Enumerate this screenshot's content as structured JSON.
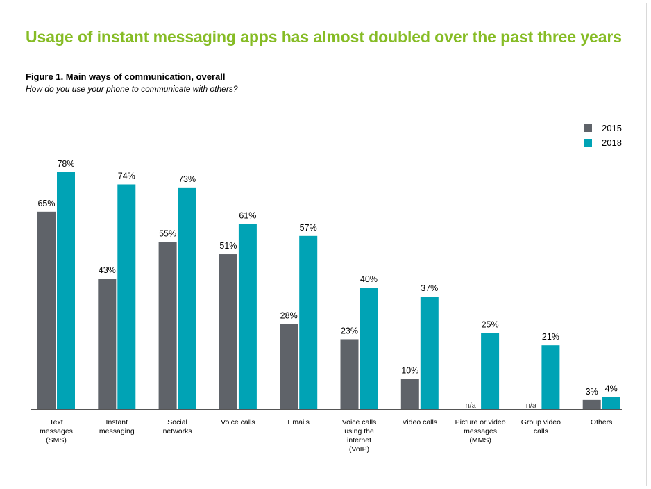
{
  "headline": "Usage of instant messaging apps has almost doubled over the past three years",
  "figure_title": "Figure 1. Main ways of communication, overall",
  "figure_subtitle": "How do you use your phone to communicate with others?",
  "colors": {
    "series_2015": "#5f6369",
    "series_2018": "#00a3b5",
    "headline": "#86bc25",
    "axis": "#555555"
  },
  "legend": [
    {
      "label": "2015",
      "color": "#5f6369"
    },
    {
      "label": "2018",
      "color": "#00a3b5"
    }
  ],
  "chart_data": {
    "type": "bar",
    "title": "Figure 1. Main ways of communication, overall",
    "subtitle": "How do you use your phone to communicate with others?",
    "xlabel": "",
    "ylabel": "",
    "ylim": [
      0,
      78
    ],
    "grid": false,
    "legend_position": "top-right",
    "categories": [
      "Text messages (SMS)",
      "Instant messaging",
      "Social networks",
      "Voice calls",
      "Emails",
      "Voice calls using the internet (VoIP)",
      "Video calls",
      "Picture or video messages (MMS)",
      "Group video calls",
      "Others"
    ],
    "category_lines": [
      [
        "Text",
        "messages",
        "(SMS)"
      ],
      [
        "Instant",
        "messaging"
      ],
      [
        "Social",
        "networks"
      ],
      [
        "Voice calls"
      ],
      [
        "Emails"
      ],
      [
        "Voice calls",
        "using the",
        "internet",
        "(VoIP)"
      ],
      [
        "Video calls"
      ],
      [
        "Picture or video",
        "messages",
        "(MMS)"
      ],
      [
        "Group video",
        "calls"
      ],
      [
        "Others"
      ]
    ],
    "series": [
      {
        "name": "2015",
        "values": [
          65,
          43,
          55,
          51,
          28,
          23,
          10,
          null,
          null,
          3
        ],
        "labels": [
          "65%",
          "43%",
          "55%",
          "51%",
          "28%",
          "23%",
          "10%",
          "n/a",
          "n/a",
          "3%"
        ]
      },
      {
        "name": "2018",
        "values": [
          78,
          74,
          73,
          61,
          57,
          40,
          37,
          25,
          21,
          4
        ],
        "labels": [
          "78%",
          "74%",
          "73%",
          "61%",
          "57%",
          "40%",
          "37%",
          "25%",
          "21%",
          "4%"
        ]
      }
    ]
  }
}
